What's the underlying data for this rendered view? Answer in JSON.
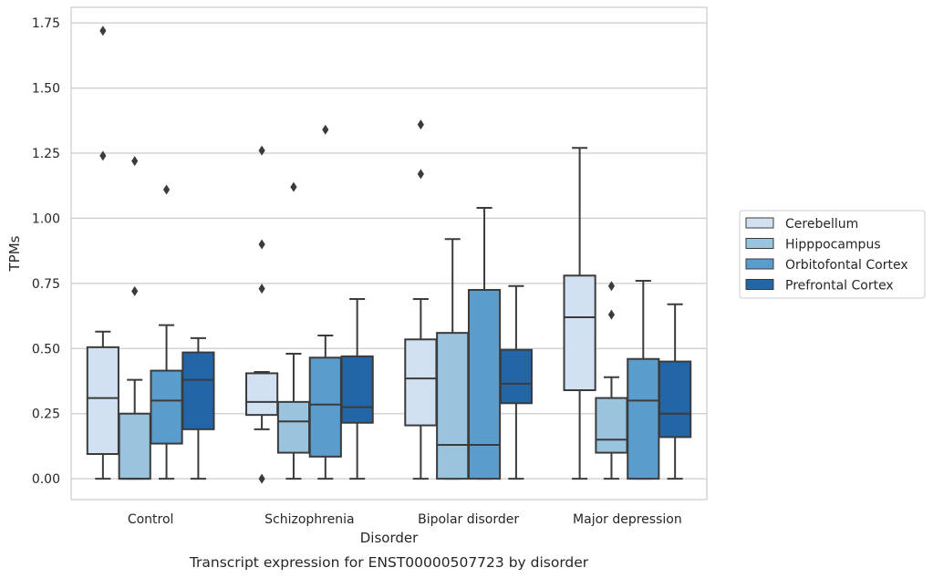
{
  "chart_data": {
    "type": "box",
    "caption": "Transcript expression for ENST00000507723 by disorder",
    "xlabel": "Disorder",
    "ylabel": "TPMs",
    "ylim": [
      -0.08,
      1.81
    ],
    "yticks": [
      0.0,
      0.25,
      0.5,
      0.75,
      1.0,
      1.25,
      1.5,
      1.75
    ],
    "ytick_labels": [
      "0.00",
      "0.25",
      "0.50",
      "0.75",
      "1.00",
      "1.25",
      "1.50",
      "1.75"
    ],
    "grid": "horizontal",
    "legend_position": "right",
    "categories": [
      "Control",
      "Schizophrenia",
      "Bipolar disorder",
      "Major depression"
    ],
    "series": [
      {
        "name": "Cerebellum",
        "color": "#d2e1f1",
        "boxes": [
          {
            "whislo": 0.0,
            "q1": 0.095,
            "med": 0.31,
            "q3": 0.505,
            "whishi": 0.565,
            "fliers": [
              1.72,
              1.24
            ]
          },
          {
            "whislo": 0.19,
            "q1": 0.245,
            "med": 0.295,
            "q3": 0.405,
            "whishi": 0.41,
            "fliers": [
              0.0,
              0.73,
              0.9,
              1.26
            ]
          },
          {
            "whislo": 0.0,
            "q1": 0.205,
            "med": 0.385,
            "q3": 0.535,
            "whishi": 0.69,
            "fliers": [
              1.17,
              1.36
            ]
          },
          {
            "whislo": 0.0,
            "q1": 0.34,
            "med": 0.62,
            "q3": 0.78,
            "whishi": 1.27,
            "fliers": []
          }
        ]
      },
      {
        "name": "Hipppocampus",
        "color": "#9ac3de",
        "boxes": [
          {
            "whislo": 0.0,
            "q1": 0.0,
            "med": 0.0,
            "q3": 0.25,
            "whishi": 0.38,
            "fliers": [
              0.72,
              1.22
            ]
          },
          {
            "whislo": 0.0,
            "q1": 0.1,
            "med": 0.22,
            "q3": 0.295,
            "whishi": 0.48,
            "fliers": [
              1.12
            ]
          },
          {
            "whislo": 0.0,
            "q1": 0.0,
            "med": 0.13,
            "q3": 0.56,
            "whishi": 0.92,
            "fliers": []
          },
          {
            "whislo": 0.0,
            "q1": 0.1,
            "med": 0.15,
            "q3": 0.31,
            "whishi": 0.39,
            "fliers": [
              0.63,
              0.74
            ]
          }
        ]
      },
      {
        "name": "Orbitofontal Cortex",
        "color": "#5a9ccc",
        "boxes": [
          {
            "whislo": 0.0,
            "q1": 0.135,
            "med": 0.3,
            "q3": 0.415,
            "whishi": 0.59,
            "fliers": [
              1.11
            ]
          },
          {
            "whislo": 0.0,
            "q1": 0.085,
            "med": 0.285,
            "q3": 0.465,
            "whishi": 0.55,
            "fliers": [
              1.34
            ]
          },
          {
            "whislo": 0.0,
            "q1": 0.0,
            "med": 0.13,
            "q3": 0.725,
            "whishi": 1.04,
            "fliers": []
          },
          {
            "whislo": 0.0,
            "q1": 0.0,
            "med": 0.3,
            "q3": 0.46,
            "whishi": 0.76,
            "fliers": []
          }
        ]
      },
      {
        "name": "Prefrontal Cortex",
        "color": "#2366a8",
        "boxes": [
          {
            "whislo": 0.0,
            "q1": 0.19,
            "med": 0.38,
            "q3": 0.485,
            "whishi": 0.54,
            "fliers": []
          },
          {
            "whislo": 0.0,
            "q1": 0.215,
            "med": 0.275,
            "q3": 0.47,
            "whishi": 0.69,
            "fliers": []
          },
          {
            "whislo": 0.0,
            "q1": 0.29,
            "med": 0.365,
            "q3": 0.495,
            "whishi": 0.74,
            "fliers": []
          },
          {
            "whislo": 0.0,
            "q1": 0.16,
            "med": 0.25,
            "q3": 0.45,
            "whishi": 0.67,
            "fliers": []
          }
        ]
      }
    ]
  }
}
